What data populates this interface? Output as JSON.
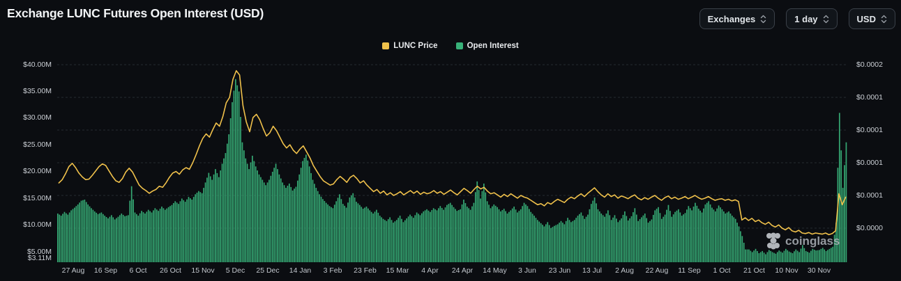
{
  "header": {
    "title": "Exchange LUNC Futures Open Interest (USD)",
    "controls": [
      {
        "label": "Exchanges"
      },
      {
        "label": "1 day"
      },
      {
        "label": "USD"
      }
    ]
  },
  "legend": [
    {
      "label": "LUNC Price",
      "color": "#f0c14b"
    },
    {
      "label": "Open Interest",
      "color": "#38b179"
    }
  ],
  "watermark": {
    "text": "coinglass"
  },
  "chart_data": {
    "type": "bar",
    "subtype": "bar+line dual axis",
    "title": "Exchange LUNC Futures Open Interest (USD)",
    "x_tick_labels": [
      "27 Aug",
      "16 Sep",
      "6 Oct",
      "26 Oct",
      "15 Nov",
      "5 Dec",
      "25 Dec",
      "14 Jan",
      "3 Feb",
      "23 Feb",
      "15 Mar",
      "4 Apr",
      "24 Apr",
      "14 May",
      "3 Jun",
      "23 Jun",
      "13 Jul",
      "2 Aug",
      "22 Aug",
      "11 Sep",
      "1 Oct",
      "21 Oct",
      "10 Nov",
      "30 Nov"
    ],
    "left_axis": {
      "unit": "USD millions",
      "tick_labels": [
        "$40.00M",
        "$35.00M",
        "$30.00M",
        "$25.00M",
        "$20.00M",
        "$15.00M",
        "$10.00M",
        "$5.00M",
        "$3.11M"
      ],
      "tick_values": [
        40,
        35,
        30,
        25,
        20,
        15,
        10,
        5,
        3.11
      ],
      "min": 3.11,
      "max": 40
    },
    "right_axis": {
      "unit": "USD",
      "tick_labels": [
        "$0.0002",
        "$0.0001",
        "$0.0001",
        "$0.0001",
        "$0.0001",
        "$0.0000"
      ],
      "tick_values_micro_usd": [
        160,
        136,
        112,
        88,
        64,
        40
      ]
    },
    "grid": "horizontal dashed at right-axis ticks",
    "legend_position": "top center",
    "series": [
      {
        "name": "Open Interest",
        "type": "bar",
        "axis": "left",
        "unit": "million USD",
        "color": "#38b179",
        "values": [
          12.2,
          11.8,
          12.5,
          12.0,
          12.8,
          13.3,
          13.9,
          14.6,
          14.8,
          13.9,
          13.2,
          12.6,
          12.1,
          12.4,
          11.8,
          11.3,
          11.9,
          11.1,
          11.6,
          12.2,
          11.7,
          11.9,
          17.3,
          12.4,
          11.8,
          12.7,
          12.2,
          12.9,
          12.4,
          13.2,
          12.7,
          13.5,
          12.9,
          13.4,
          13.8,
          14.5,
          14.0,
          15.0,
          14.4,
          15.3,
          14.8,
          15.8,
          16.4,
          16.0,
          18.0,
          19.8,
          18.5,
          20.5,
          19.0,
          21.5,
          23.5,
          27.0,
          33.0,
          37.3,
          35.0,
          25.5,
          22.5,
          20.5,
          23.0,
          21.0,
          19.5,
          18.5,
          17.5,
          18.5,
          20.0,
          21.5,
          19.5,
          18.0,
          17.0,
          17.8,
          16.5,
          17.2,
          19.5,
          22.0,
          23.2,
          21.0,
          18.5,
          17.0,
          15.8,
          14.9,
          14.2,
          13.6,
          13.2,
          14.5,
          15.8,
          14.0,
          13.3,
          15.2,
          16.0,
          14.4,
          13.8,
          13.1,
          13.5,
          12.8,
          12.2,
          12.9,
          11.8,
          11.2,
          10.8,
          11.5,
          10.5,
          11.0,
          11.8,
          10.6,
          11.3,
          12.0,
          11.4,
          12.4,
          11.9,
          12.6,
          13.0,
          12.5,
          13.2,
          12.8,
          13.6,
          12.9,
          13.8,
          14.2,
          13.4,
          12.7,
          13.0,
          14.8,
          13.5,
          12.9,
          14.2,
          18.2,
          15.0,
          17.8,
          14.5,
          13.2,
          13.9,
          13.4,
          12.6,
          13.1,
          12.2,
          12.8,
          13.5,
          12.4,
          13.0,
          14.2,
          13.6,
          12.5,
          11.8,
          11.0,
          10.4,
          9.8,
          10.6,
          9.5,
          9.9,
          10.2,
          10.8,
          10.2,
          11.4,
          10.6,
          11.0,
          11.8,
          12.4,
          11.2,
          12.0,
          14.0,
          15.2,
          13.0,
          12.2,
          11.6,
          12.8,
          11.0,
          11.9,
          10.6,
          11.3,
          12.6,
          10.9,
          11.7,
          13.2,
          10.8,
          11.5,
          12.2,
          10.5,
          11.1,
          12.8,
          13.4,
          11.2,
          12.0,
          13.8,
          11.6,
          12.5,
          13.0,
          11.8,
          12.3,
          13.6,
          12.8,
          14.2,
          13.1,
          12.4,
          13.9,
          14.5,
          13.3,
          12.6,
          13.7,
          13.0,
          12.2,
          12.6,
          11.8,
          11.2,
          9.8,
          8.0,
          5.5,
          5.5,
          5.0,
          5.6,
          4.8,
          5.2,
          4.6,
          5.4,
          5.0,
          4.7,
          5.3,
          4.9,
          5.6,
          5.1,
          4.8,
          5.5,
          5.0,
          6.3,
          5.2,
          4.9,
          5.6,
          5.3,
          5.4,
          5.8,
          5.2,
          5.6,
          6.0,
          10.5,
          31.0,
          17.0,
          25.5
        ]
      },
      {
        "name": "LUNC Price",
        "type": "line",
        "axis": "right",
        "unit": "micro USD (1e-6 USD, estimated from gridlines)",
        "color": "#f0c14b",
        "values": [
          73.2,
          75.6,
          80,
          85.2,
          87.6,
          84.4,
          80.4,
          77.6,
          75.6,
          76,
          78.8,
          82,
          85.2,
          87.2,
          86,
          82,
          78,
          74.8,
          73.6,
          76.4,
          81.2,
          84,
          81.2,
          76.4,
          71.6,
          69.2,
          67.6,
          65.6,
          67.2,
          68.4,
          70.8,
          70,
          73.2,
          77.2,
          80.4,
          81.6,
          79.6,
          82.8,
          84.4,
          83.2,
          88,
          94,
          100.4,
          106,
          109.2,
          106.8,
          112.4,
          117.2,
          114.8,
          122,
          132,
          136,
          149.2,
          155.6,
          152.4,
          130,
          118,
          110.8,
          121.2,
          123.6,
          119.6,
          113.2,
          107.6,
          110,
          114.8,
          111.6,
          106.8,
          102,
          98.8,
          101.2,
          97.2,
          94.8,
          98,
          100.4,
          96,
          91.6,
          86,
          82,
          78,
          74.8,
          73.2,
          71.6,
          72.4,
          75.6,
          78,
          76,
          73.6,
          77.2,
          78.8,
          76.4,
          73.2,
          74.8,
          71.6,
          69.2,
          66.8,
          68.4,
          65.6,
          67.2,
          64.4,
          66,
          64,
          65.2,
          66.8,
          64.4,
          66,
          67.6,
          65.6,
          67.2,
          64.8,
          66.4,
          65.2,
          66,
          67.6,
          65.6,
          66.8,
          64.8,
          66.4,
          68,
          66,
          64.4,
          66.8,
          69.2,
          67.6,
          65.6,
          68.4,
          70.8,
          68.8,
          70,
          67.2,
          65.2,
          66,
          64.4,
          62.8,
          64.8,
          63.2,
          65.2,
          63.6,
          62,
          64,
          62.8,
          62,
          60.4,
          58.8,
          57.2,
          58,
          56.4,
          58.8,
          57.6,
          59.6,
          61.2,
          60,
          58.8,
          61.2,
          62.8,
          61.6,
          63.6,
          65.2,
          63.2,
          65.6,
          67.6,
          69.6,
          66.8,
          64.4,
          62.8,
          65.2,
          63.2,
          64.4,
          62,
          63.6,
          62.8,
          61.6,
          63.2,
          64.4,
          62,
          60.8,
          62.4,
          61.2,
          62.8,
          64,
          62,
          60.4,
          62.4,
          63.6,
          61.6,
          62.8,
          61.2,
          62,
          63.2,
          61.6,
          62.8,
          64,
          62.4,
          61.2,
          62,
          63.2,
          61.6,
          60.4,
          61.2,
          61.6,
          60.4,
          61.2,
          60,
          60.8,
          59.6,
          46,
          47.6,
          45.6,
          47.2,
          44.8,
          46,
          44,
          42.8,
          44.4,
          42,
          40.8,
          42.4,
          40,
          38.8,
          40.4,
          38,
          37.2,
          38.4,
          36.4,
          36,
          36.8,
          35.6,
          36.4,
          36,
          35.6,
          36.4,
          35.2,
          36,
          38,
          65.2,
          57.2,
          62.8
        ]
      }
    ]
  }
}
